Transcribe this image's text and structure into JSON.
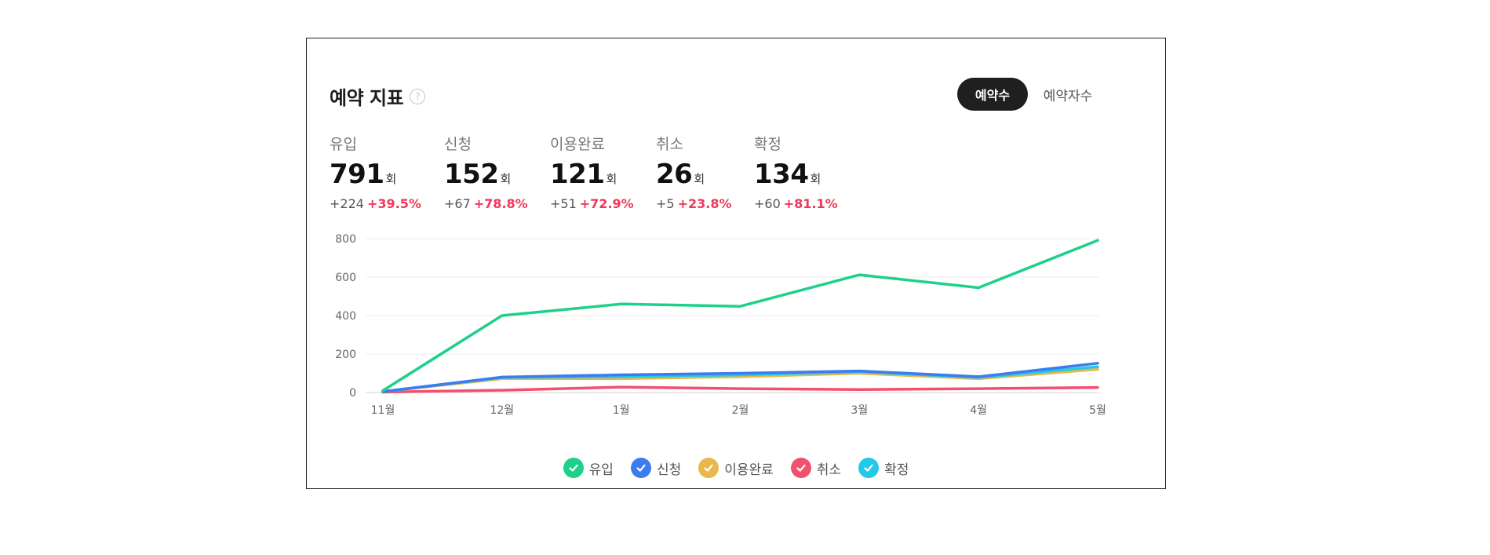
{
  "header": {
    "title": "예약 지표",
    "help_icon": "?"
  },
  "toggle": {
    "active": "예약수",
    "inactive": "예약자수"
  },
  "metrics": [
    {
      "label": "유입",
      "value": "791",
      "unit": "회",
      "delta": "+224",
      "pct": "+39.5%"
    },
    {
      "label": "신청",
      "value": "152",
      "unit": "회",
      "delta": "+67",
      "pct": "+78.8%"
    },
    {
      "label": "이용완료",
      "value": "121",
      "unit": "회",
      "delta": "+51",
      "pct": "+72.9%"
    },
    {
      "label": "취소",
      "value": "26",
      "unit": "회",
      "delta": "+5",
      "pct": "+23.8%"
    },
    {
      "label": "확정",
      "value": "134",
      "unit": "회",
      "delta": "+60",
      "pct": "+81.1%"
    }
  ],
  "chart_data": {
    "type": "line",
    "categories": [
      "11월",
      "12월",
      "1월",
      "2월",
      "3월",
      "4월",
      "5월"
    ],
    "y_ticks": [
      0,
      200,
      400,
      600,
      800
    ],
    "ylim": [
      0,
      800
    ],
    "grid": true,
    "legend_position": "bottom",
    "series": [
      {
        "name": "유입",
        "color": "#1ed18a",
        "values": [
          10,
          400,
          460,
          448,
          612,
          545,
          791
        ]
      },
      {
        "name": "신청",
        "color": "#3c7cf0",
        "values": [
          5,
          80,
          92,
          100,
          112,
          82,
          152
        ]
      },
      {
        "name": "이용완료",
        "color": "#e8b94a",
        "values": [
          5,
          72,
          72,
          82,
          100,
          72,
          121
        ]
      },
      {
        "name": "취소",
        "color": "#f2506e",
        "values": [
          2,
          12,
          28,
          20,
          15,
          20,
          26
        ]
      },
      {
        "name": "확정",
        "color": "#22c9e8",
        "values": [
          5,
          78,
          82,
          92,
          108,
          78,
          134
        ]
      }
    ]
  }
}
